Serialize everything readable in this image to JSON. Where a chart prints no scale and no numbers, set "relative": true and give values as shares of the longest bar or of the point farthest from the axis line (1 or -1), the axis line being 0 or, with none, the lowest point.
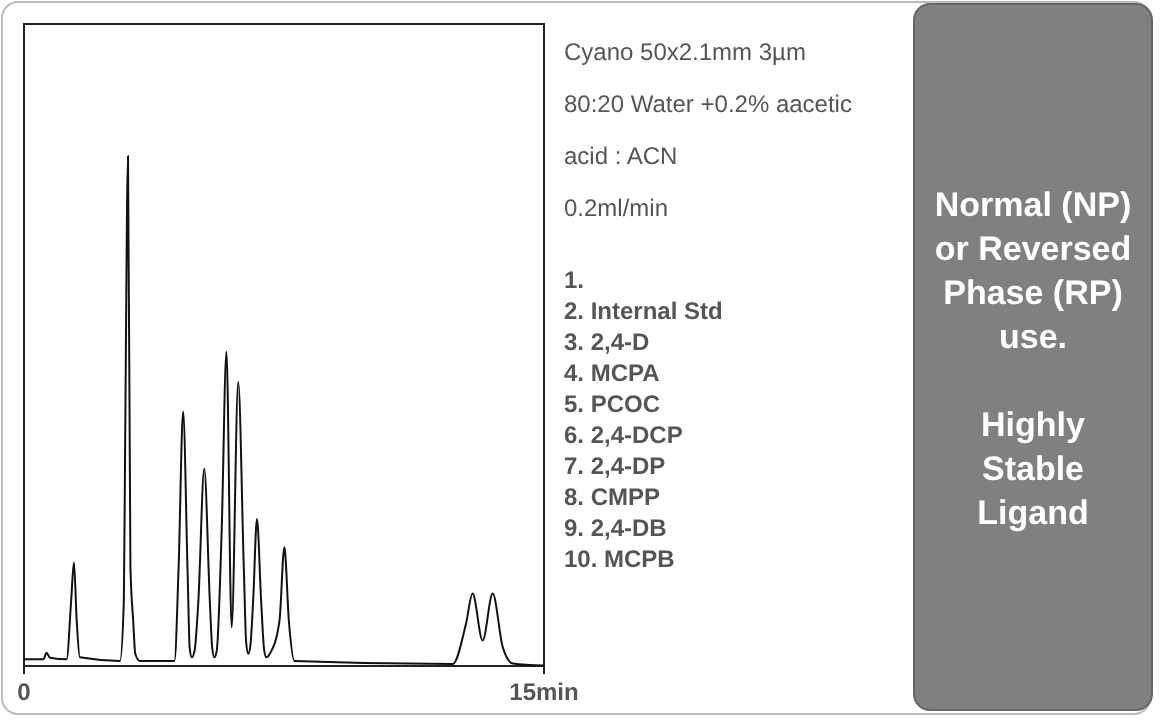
{
  "chart_data": {
    "type": "line",
    "relative": true,
    "tick_labels": "x",
    "xlim": [
      0,
      15
    ],
    "xticks": [
      0,
      {
        "value": 15,
        "label": "15min"
      }
    ],
    "marker": "none",
    "line_style": "solid",
    "series": [
      {
        "color": "#111111",
        "x": [
          0,
          0.56,
          0.65,
          0.75,
          1.23,
          1.36,
          1.44,
          1.52,
          1.61,
          2.77,
          2.88,
          2.92,
          3.0,
          3.07,
          3.15,
          3.21,
          3.34,
          4.34,
          4.46,
          4.59,
          4.72,
          4.78,
          4.84,
          4.92,
          5.03,
          5.2,
          5.36,
          5.43,
          5.49,
          5.56,
          5.7,
          5.84,
          5.99,
          6.18,
          6.34,
          6.41,
          6.47,
          6.53,
          6.61,
          6.72,
          6.84,
          6.93,
          6.99,
          7.1,
          7.37,
          7.51,
          7.64,
          7.8,
          12.37,
          12.75,
          12.94,
          13.23,
          13.52,
          13.81,
          14.1,
          15
        ],
        "values": [
          0.013,
          0.013,
          0.026,
          0.016,
          0.013,
          0.128,
          0.203,
          0.089,
          0.017,
          0.01,
          0.128,
          0.456,
          1.0,
          0.194,
          0.089,
          0.024,
          0.01,
          0.01,
          0.194,
          0.499,
          0.181,
          0.035,
          0.017,
          0.03,
          0.128,
          0.387,
          0.128,
          0.035,
          0.017,
          0.03,
          0.26,
          0.616,
          0.076,
          0.557,
          0.194,
          0.045,
          0.024,
          0.04,
          0.128,
          0.288,
          0.128,
          0.03,
          0.017,
          0.025,
          0.089,
          0.233,
          0.089,
          0.01,
          0.004,
          0.083,
          0.142,
          0.05,
          0.142,
          0.037,
          0.005,
          0.001
        ]
      }
    ],
    "annotations": [
      "Cyano 50x2.1mm 3µm",
      "80:20 Water +0.2% aacetic",
      "acid :  ACN",
      "0.2ml/min",
      "1.",
      "2. Internal Std",
      "3. 2,4-D",
      "4. MCPA",
      "5. PCOC",
      "6. 2,4-DCP",
      "7. 2,4-DP",
      "8. CMPP",
      "9. 2,4-DB",
      "10. MCPB",
      "Normal (NP) or Reversed Phase (RP) use.",
      "Highly Stable Ligand"
    ]
  }
}
